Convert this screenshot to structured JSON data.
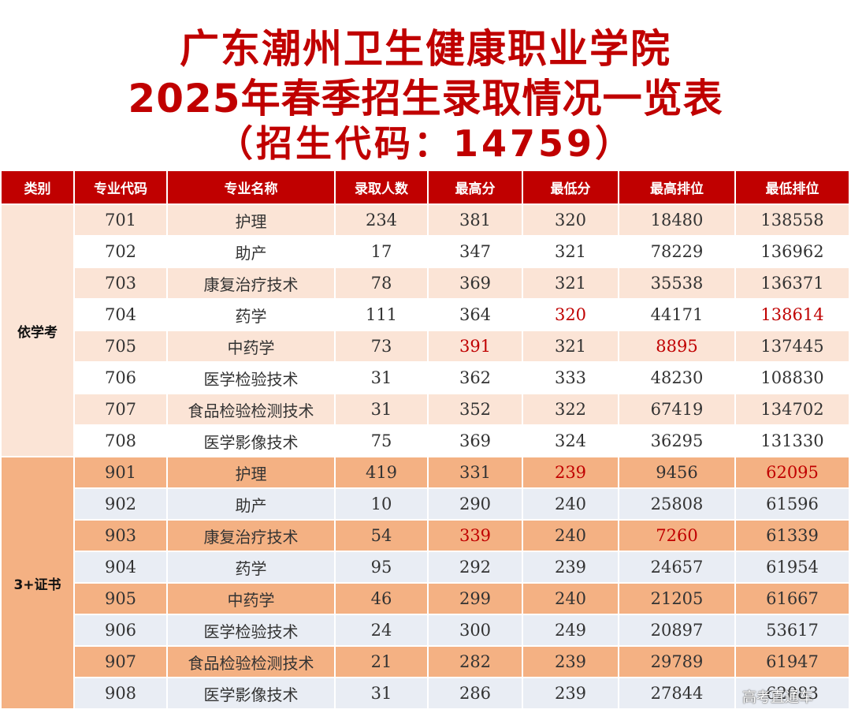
{
  "title": {
    "line1": "广东潮州卫生健康职业学院",
    "line2": "2025年春季招生录取情况一览表",
    "line3": "（招生代码：14759）"
  },
  "colors": {
    "header": "#c00000",
    "highlight": "#c00000",
    "group1_band": "#fbe4d6",
    "group2_band": "#f4b183",
    "group2_alt": "#e9edf4"
  },
  "headers": [
    "类别",
    "专业代码",
    "专业名称",
    "录取人数",
    "最高分",
    "最低分",
    "最高排位",
    "最低排位"
  ],
  "groups": [
    {
      "category": "依学考",
      "rows": [
        {
          "code": "701",
          "name": "护理",
          "count": "234",
          "max_score": "381",
          "min_score": "320",
          "max_rank": "18480",
          "min_rank": "138558"
        },
        {
          "code": "702",
          "name": "助产",
          "count": "17",
          "max_score": "347",
          "min_score": "321",
          "max_rank": "78229",
          "min_rank": "136962"
        },
        {
          "code": "703",
          "name": "康复治疗技术",
          "count": "78",
          "max_score": "369",
          "min_score": "321",
          "max_rank": "35538",
          "min_rank": "136371"
        },
        {
          "code": "704",
          "name": "药学",
          "count": "111",
          "max_score": "364",
          "min_score": "320",
          "max_rank": "44171",
          "min_rank": "138614"
        },
        {
          "code": "705",
          "name": "中药学",
          "count": "73",
          "max_score": "391",
          "min_score": "321",
          "max_rank": "8895",
          "min_rank": "137445"
        },
        {
          "code": "706",
          "name": "医学检验技术",
          "count": "31",
          "max_score": "362",
          "min_score": "333",
          "max_rank": "48230",
          "min_rank": "108830"
        },
        {
          "code": "707",
          "name": "食品检验检测技术",
          "count": "31",
          "max_score": "352",
          "min_score": "322",
          "max_rank": "67419",
          "min_rank": "134702"
        },
        {
          "code": "708",
          "name": "医学影像技术",
          "count": "75",
          "max_score": "369",
          "min_score": "324",
          "max_rank": "36295",
          "min_rank": "131330"
        }
      ]
    },
    {
      "category": "3+证书",
      "rows": [
        {
          "code": "901",
          "name": "护理",
          "count": "419",
          "max_score": "331",
          "min_score": "239",
          "max_rank": "9456",
          "min_rank": "62095"
        },
        {
          "code": "902",
          "name": "助产",
          "count": "10",
          "max_score": "290",
          "min_score": "240",
          "max_rank": "25808",
          "min_rank": "61596"
        },
        {
          "code": "903",
          "name": "康复治疗技术",
          "count": "54",
          "max_score": "339",
          "min_score": "240",
          "max_rank": "7260",
          "min_rank": "61339"
        },
        {
          "code": "904",
          "name": "药学",
          "count": "95",
          "max_score": "292",
          "min_score": "239",
          "max_rank": "24657",
          "min_rank": "61954"
        },
        {
          "code": "905",
          "name": "中药学",
          "count": "46",
          "max_score": "299",
          "min_score": "240",
          "max_rank": "21205",
          "min_rank": "61667"
        },
        {
          "code": "906",
          "name": "医学检验技术",
          "count": "24",
          "max_score": "300",
          "min_score": "249",
          "max_rank": "20897",
          "min_rank": "53617"
        },
        {
          "code": "907",
          "name": "食品检验检测技术",
          "count": "21",
          "max_score": "282",
          "min_score": "239",
          "max_rank": "29789",
          "min_rank": "61947"
        },
        {
          "code": "908",
          "name": "医学影像技术",
          "count": "31",
          "max_score": "286",
          "min_score": "239",
          "max_rank": "27844",
          "min_rank": "62083"
        }
      ]
    }
  ],
  "watermark": "高考直通车"
}
